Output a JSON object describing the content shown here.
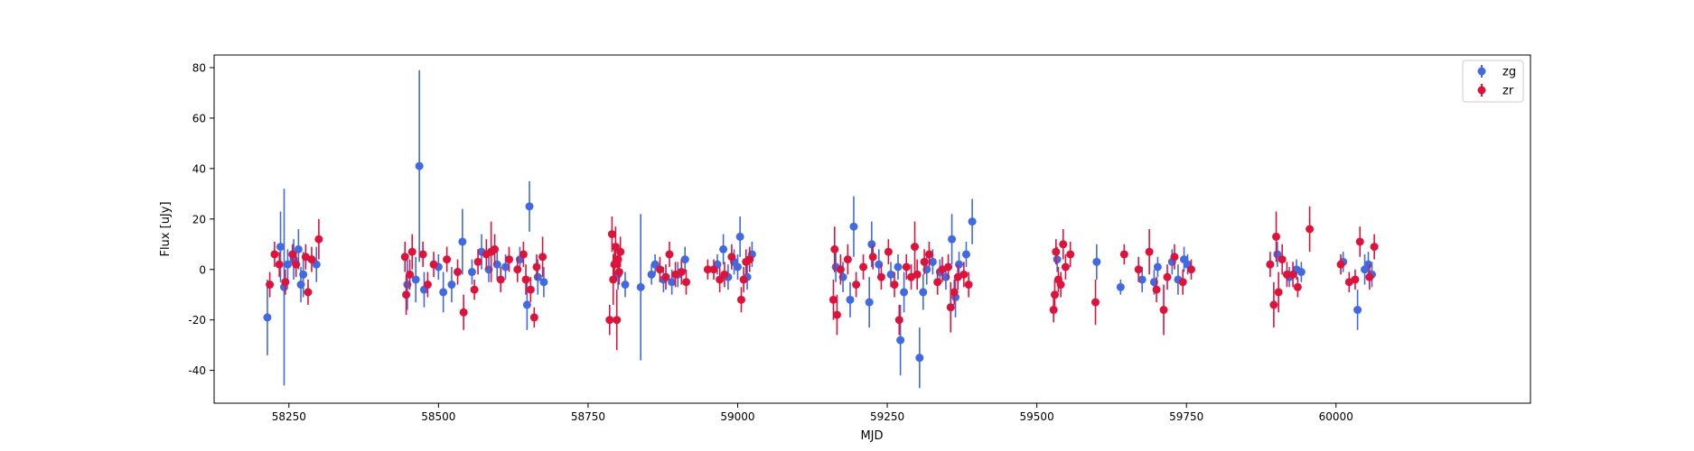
{
  "colors": {
    "zg": "#4169e1",
    "zr": "#dc143c"
  },
  "chart_data": {
    "type": "scatter",
    "title": "",
    "xlabel": "MJD",
    "ylabel": "Flux [uJy]",
    "xlim": [
      58125,
      60325
    ],
    "ylim": [
      -53,
      85
    ],
    "x_ticks": [
      58250,
      58500,
      58750,
      59000,
      59250,
      59500,
      59750,
      60000
    ],
    "y_ticks": [
      -40,
      -20,
      0,
      20,
      40,
      60,
      80
    ],
    "grid": false,
    "legend_position": "upper-right",
    "series": [
      {
        "name": "zg",
        "color": "#4169e1",
        "points": [
          [
            58214,
            -19,
            15
          ],
          [
            58236,
            9,
            14
          ],
          [
            58242,
            -7,
            39
          ],
          [
            58248,
            2,
            6
          ],
          [
            58258,
            4,
            8
          ],
          [
            58266,
            8,
            8
          ],
          [
            58270,
            -6,
            7
          ],
          [
            58274,
            -2,
            9
          ],
          [
            58296,
            2,
            7
          ],
          [
            58448,
            -6,
            10
          ],
          [
            58462,
            -4,
            9
          ],
          [
            58468,
            41,
            38
          ],
          [
            58476,
            -8,
            7
          ],
          [
            58500,
            1,
            5
          ],
          [
            58508,
            -9,
            8
          ],
          [
            58522,
            -6,
            7
          ],
          [
            58540,
            11,
            13
          ],
          [
            58556,
            -1,
            5
          ],
          [
            58572,
            7,
            7
          ],
          [
            58584,
            0,
            5
          ],
          [
            58598,
            2,
            6
          ],
          [
            58612,
            1,
            5
          ],
          [
            58636,
            4,
            5
          ],
          [
            58648,
            -14,
            10
          ],
          [
            58652,
            25,
            10
          ],
          [
            58666,
            -3,
            7
          ],
          [
            58676,
            -5,
            6
          ],
          [
            58800,
            -2,
            6
          ],
          [
            58812,
            -6,
            5
          ],
          [
            58838,
            -7,
            29
          ],
          [
            58856,
            -2,
            4
          ],
          [
            58862,
            2,
            4
          ],
          [
            58876,
            -4,
            5
          ],
          [
            58890,
            -5,
            5
          ],
          [
            58900,
            -2,
            5
          ],
          [
            58912,
            4,
            5
          ],
          [
            58966,
            2,
            4
          ],
          [
            58976,
            8,
            6
          ],
          [
            58984,
            -3,
            5
          ],
          [
            58994,
            3,
            5
          ],
          [
            59000,
            1,
            5
          ],
          [
            59004,
            13,
            8
          ],
          [
            59016,
            -3,
            5
          ],
          [
            59024,
            6,
            5
          ],
          [
            59164,
            1,
            6
          ],
          [
            59176,
            -3,
            6
          ],
          [
            59188,
            -12,
            7
          ],
          [
            59194,
            17,
            12
          ],
          [
            59220,
            -13,
            10
          ],
          [
            59224,
            10,
            9
          ],
          [
            59236,
            2,
            6
          ],
          [
            59256,
            -2,
            5
          ],
          [
            59268,
            1,
            5
          ],
          [
            59272,
            -28,
            14
          ],
          [
            59278,
            -9,
            8
          ],
          [
            59304,
            -35,
            12
          ],
          [
            59310,
            -9,
            7
          ],
          [
            59316,
            0,
            6
          ],
          [
            59326,
            3,
            5
          ],
          [
            59338,
            -1,
            5
          ],
          [
            59348,
            -3,
            5
          ],
          [
            59358,
            12,
            10
          ],
          [
            59364,
            -11,
            8
          ],
          [
            59370,
            2,
            5
          ],
          [
            59382,
            6,
            5
          ],
          [
            59392,
            19,
            9
          ],
          [
            59534,
            4,
            5
          ],
          [
            59600,
            3,
            7
          ],
          [
            59640,
            -7,
            3
          ],
          [
            59676,
            -4,
            5
          ],
          [
            59696,
            -5,
            5
          ],
          [
            59702,
            1,
            4
          ],
          [
            59726,
            3,
            5
          ],
          [
            59736,
            -4,
            6
          ],
          [
            59746,
            4,
            5
          ],
          [
            59752,
            2,
            4
          ],
          [
            59902,
            6,
            5
          ],
          [
            59922,
            -3,
            4
          ],
          [
            59934,
            0,
            4
          ],
          [
            59942,
            -1,
            4
          ],
          [
            60012,
            3,
            4
          ],
          [
            60036,
            -16,
            8
          ],
          [
            60048,
            0,
            6
          ],
          [
            60054,
            2,
            5
          ],
          [
            60060,
            -2,
            5
          ]
        ]
      },
      {
        "name": "zr",
        "color": "#dc143c",
        "points": [
          [
            58218,
            -6,
            5
          ],
          [
            58226,
            6,
            5
          ],
          [
            58234,
            2,
            5
          ],
          [
            58244,
            -5,
            5
          ],
          [
            58256,
            6,
            4
          ],
          [
            58262,
            2,
            5
          ],
          [
            58278,
            5,
            5
          ],
          [
            58282,
            -9,
            5
          ],
          [
            58288,
            4,
            5
          ],
          [
            58300,
            12,
            8
          ],
          [
            58444,
            5,
            6
          ],
          [
            58446,
            -10,
            8
          ],
          [
            58452,
            -2,
            6
          ],
          [
            58456,
            7,
            7
          ],
          [
            58474,
            6,
            5
          ],
          [
            58482,
            -6,
            5
          ],
          [
            58492,
            2,
            5
          ],
          [
            58514,
            4,
            5
          ],
          [
            58532,
            -1,
            5
          ],
          [
            58542,
            -17,
            7
          ],
          [
            58560,
            -8,
            4
          ],
          [
            58566,
            3,
            5
          ],
          [
            58580,
            6,
            6
          ],
          [
            58588,
            7,
            12
          ],
          [
            58594,
            8,
            6
          ],
          [
            58604,
            -4,
            5
          ],
          [
            58618,
            4,
            5
          ],
          [
            58632,
            0,
            5
          ],
          [
            58642,
            6,
            5
          ],
          [
            58646,
            -4,
            6
          ],
          [
            58654,
            -8,
            5
          ],
          [
            58660,
            -19,
            4
          ],
          [
            58664,
            1,
            5
          ],
          [
            58674,
            5,
            8
          ],
          [
            58786,
            -20,
            6
          ],
          [
            58790,
            14,
            7
          ],
          [
            58792,
            -4,
            10
          ],
          [
            58794,
            2,
            7
          ],
          [
            58796,
            9,
            8
          ],
          [
            58798,
            -20,
            12
          ],
          [
            58800,
            4,
            6
          ],
          [
            58802,
            -1,
            5
          ],
          [
            58804,
            7,
            6
          ],
          [
            58870,
            0,
            5
          ],
          [
            58880,
            -3,
            5
          ],
          [
            58886,
            6,
            5
          ],
          [
            58896,
            -2,
            5
          ],
          [
            58906,
            -1,
            5
          ],
          [
            58914,
            -5,
            5
          ],
          [
            58950,
            0,
            4
          ],
          [
            58960,
            0,
            4
          ],
          [
            58970,
            -4,
            5
          ],
          [
            58978,
            -2,
            5
          ],
          [
            58990,
            5,
            5
          ],
          [
            59006,
            -12,
            5
          ],
          [
            59010,
            -4,
            5
          ],
          [
            59014,
            3,
            5
          ],
          [
            59020,
            4,
            5
          ],
          [
            59160,
            -12,
            8
          ],
          [
            59162,
            8,
            9
          ],
          [
            59166,
            -18,
            8
          ],
          [
            59172,
            0,
            6
          ],
          [
            59184,
            4,
            6
          ],
          [
            59198,
            -6,
            5
          ],
          [
            59210,
            1,
            5
          ],
          [
            59226,
            5,
            5
          ],
          [
            59240,
            -3,
            5
          ],
          [
            59252,
            7,
            5
          ],
          [
            59262,
            -6,
            5
          ],
          [
            59270,
            -20,
            6
          ],
          [
            59282,
            1,
            5
          ],
          [
            59290,
            -3,
            5
          ],
          [
            59296,
            9,
            10
          ],
          [
            59300,
            -2,
            6
          ],
          [
            59312,
            3,
            5
          ],
          [
            59320,
            6,
            5
          ],
          [
            59334,
            -5,
            5
          ],
          [
            59342,
            0,
            5
          ],
          [
            59352,
            1,
            5
          ],
          [
            59356,
            -15,
            10
          ],
          [
            59362,
            -9,
            5
          ],
          [
            59368,
            -3,
            5
          ],
          [
            59378,
            -2,
            5
          ],
          [
            59386,
            -6,
            5
          ],
          [
            59528,
            -16,
            5
          ],
          [
            59530,
            -10,
            6
          ],
          [
            59532,
            7,
            5
          ],
          [
            59536,
            -4,
            5
          ],
          [
            59540,
            -6,
            5
          ],
          [
            59544,
            10,
            6
          ],
          [
            59548,
            1,
            5
          ],
          [
            59556,
            6,
            5
          ],
          [
            59598,
            -13,
            9
          ],
          [
            59646,
            6,
            4
          ],
          [
            59670,
            0,
            5
          ],
          [
            59688,
            7,
            9
          ],
          [
            59700,
            -8,
            5
          ],
          [
            59712,
            -16,
            10
          ],
          [
            59718,
            -3,
            5
          ],
          [
            59730,
            5,
            5
          ],
          [
            59744,
            -5,
            5
          ],
          [
            59758,
            0,
            4
          ],
          [
            59890,
            2,
            5
          ],
          [
            59896,
            -14,
            9
          ],
          [
            59900,
            13,
            10
          ],
          [
            59904,
            -9,
            8
          ],
          [
            59910,
            4,
            6
          ],
          [
            59918,
            -2,
            5
          ],
          [
            59928,
            -2,
            5
          ],
          [
            59936,
            -7,
            4
          ],
          [
            59956,
            16,
            9
          ],
          [
            60008,
            2,
            4
          ],
          [
            60022,
            -5,
            4
          ],
          [
            60032,
            -4,
            4
          ],
          [
            60040,
            11,
            6
          ],
          [
            60056,
            -3,
            5
          ],
          [
            60064,
            9,
            5
          ]
        ]
      }
    ]
  }
}
